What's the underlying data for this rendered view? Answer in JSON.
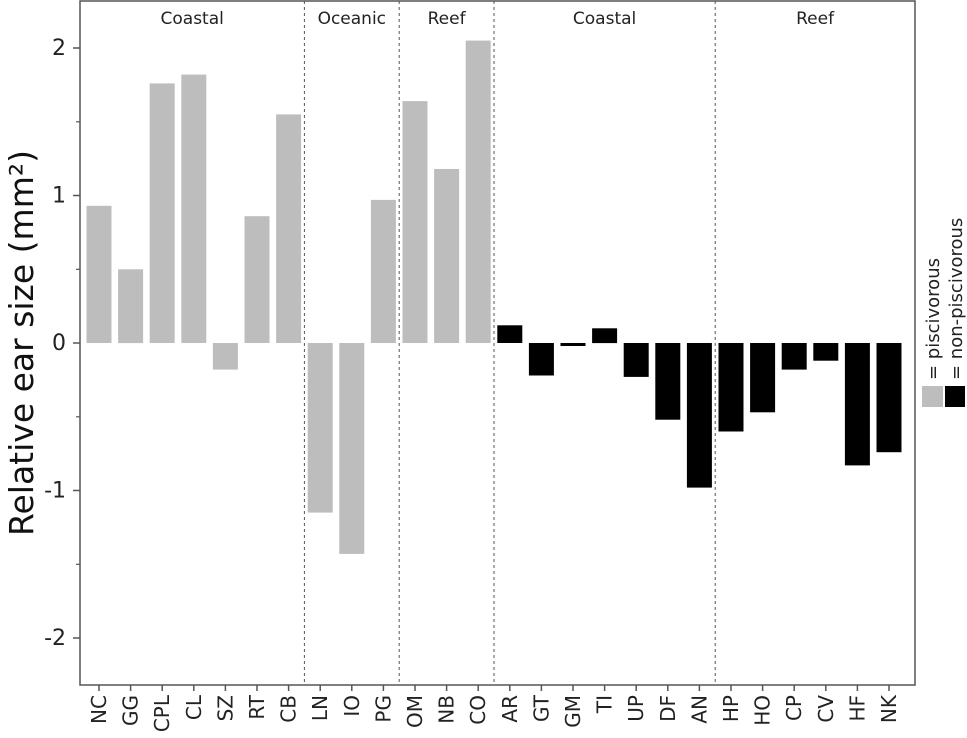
{
  "chart_data": {
    "type": "bar",
    "ylabel": "Relative ear size (mm²)",
    "ylim": [
      -2.35,
      2.3
    ],
    "yticks": [
      {
        "value": 2,
        "label": "2"
      },
      {
        "value": 1,
        "label": "1"
      },
      {
        "value": 0,
        "label": "0"
      },
      {
        "value": -1,
        "label": "-1"
      },
      {
        "value": -2,
        "label": "-2"
      }
    ],
    "categories": [
      "NC",
      "GG",
      "CPL",
      "CL",
      "SZ",
      "RT",
      "CB",
      "LN",
      "IO",
      "PG",
      "OM",
      "NB",
      "CO",
      "AR",
      "GT",
      "GM",
      "TI",
      "UP",
      "DF",
      "AN",
      "HP",
      "HO",
      "CP",
      "CV",
      "HF",
      "NK"
    ],
    "values": [
      0.93,
      0.5,
      1.76,
      1.82,
      -0.18,
      0.86,
      1.55,
      -1.15,
      -1.43,
      0.97,
      1.64,
      1.18,
      2.05,
      0.12,
      -0.22,
      -0.02,
      0.1,
      -0.23,
      -0.52,
      -0.98,
      -0.6,
      -0.47,
      -0.18,
      -0.12,
      -0.83,
      -0.74
    ],
    "diet": [
      "piscivorous",
      "piscivorous",
      "piscivorous",
      "piscivorous",
      "piscivorous",
      "piscivorous",
      "piscivorous",
      "piscivorous",
      "piscivorous",
      "piscivorous",
      "piscivorous",
      "piscivorous",
      "piscivorous",
      "non-piscivorous",
      "non-piscivorous",
      "non-piscivorous",
      "non-piscivorous",
      "non-piscivorous",
      "non-piscivorous",
      "non-piscivorous",
      "non-piscivorous",
      "non-piscivorous",
      "non-piscivorous",
      "non-piscivorous",
      "non-piscivorous",
      "non-piscivorous"
    ],
    "groups": [
      {
        "label": "Coastal",
        "start": 0,
        "end": 6
      },
      {
        "label": "Oceanic",
        "start": 7,
        "end": 9
      },
      {
        "label": "Reef",
        "start": 10,
        "end": 12
      },
      {
        "label": "Coastal",
        "start": 13,
        "end": 19
      },
      {
        "label": "Reef",
        "start": 20,
        "end": 25
      }
    ],
    "legend": [
      {
        "label": "= piscivorous",
        "color": "#bdbdbd"
      },
      {
        "label": "= non-piscivorous",
        "color": "#000000"
      }
    ],
    "grid": false,
    "legend_position": "right"
  },
  "colors": {
    "piscivorous": "#bdbdbd",
    "non-piscivorous": "#000000",
    "axis": "#555555"
  }
}
